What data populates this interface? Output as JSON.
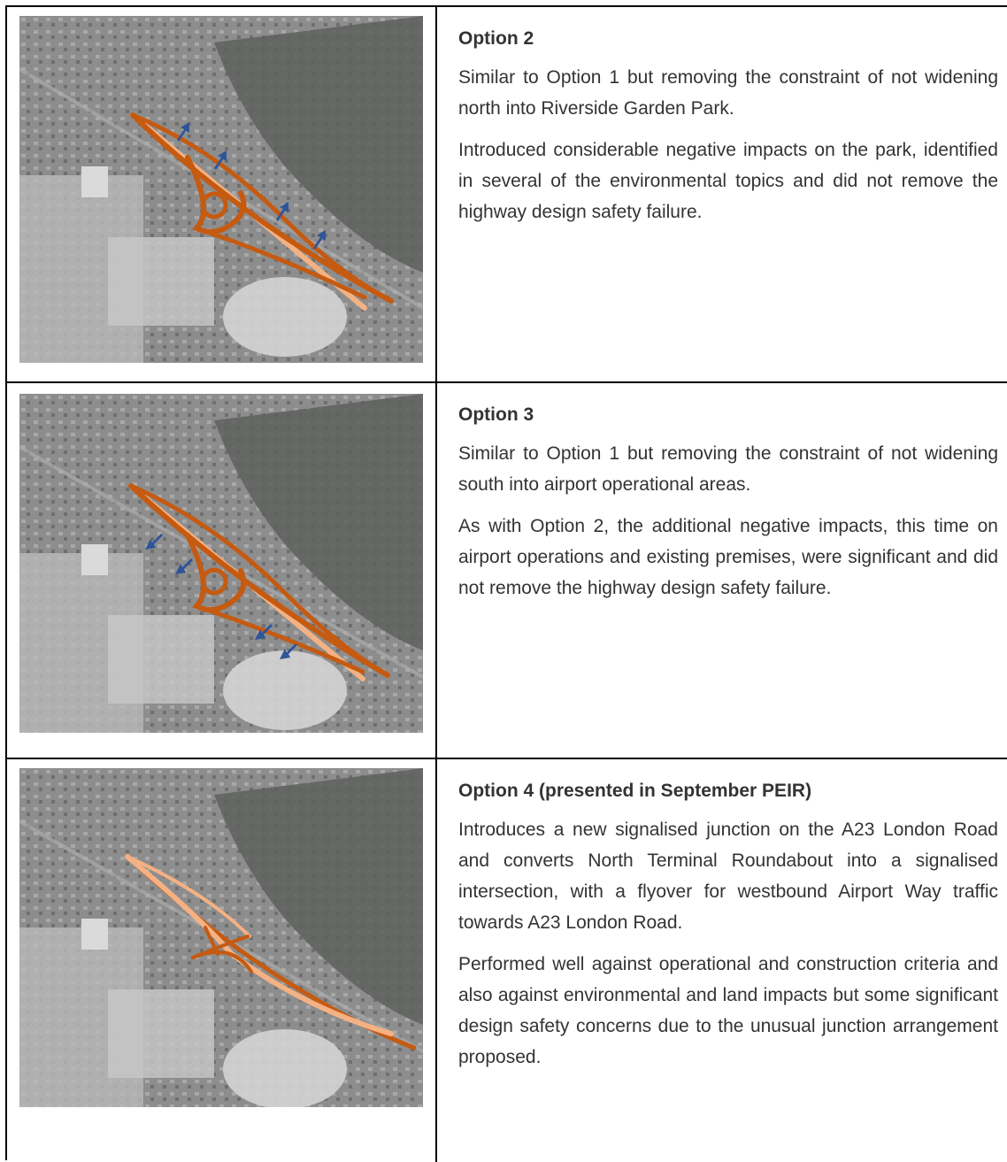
{
  "options": [
    {
      "title": "Option 2",
      "paragraphs": [
        "Similar to Option 1 but removing the constraint of not widening north into Riverside Garden Park.",
        "Introduced considerable negative impacts on the park, identified in several of the environmental topics and did not remove the highway design safety failure."
      ],
      "map": {
        "image": "aerial-map",
        "arrow_direction": "north"
      }
    },
    {
      "title": "Option 3",
      "paragraphs": [
        "Similar to Option 1 but removing the constraint of not widening south into airport operational areas.",
        "As with Option 2, the additional negative impacts, this time on airport operations and existing premises, were significant and did not remove the highway design safety failure."
      ],
      "map": {
        "image": "aerial-map",
        "arrow_direction": "south"
      }
    },
    {
      "title": "Option 4 (presented in September PEIR)",
      "paragraphs": [
        "Introduces a new signalised junction on the A23 London Road and converts North Terminal Roundabout into a signalised intersection, with a flyover for westbound Airport Way traffic towards A23 London Road.",
        "Performed well against operational and construction criteria and also against environmental and land impacts but some significant design safety concerns due to the unusual junction arrangement proposed."
      ],
      "map": {
        "image": "aerial-map",
        "arrow_direction": "none"
      }
    }
  ],
  "colors": {
    "road_dark": "#c55a11",
    "road_light": "#f4b183",
    "arrow": "#2f5597",
    "map_base": "#8a8a8a"
  }
}
